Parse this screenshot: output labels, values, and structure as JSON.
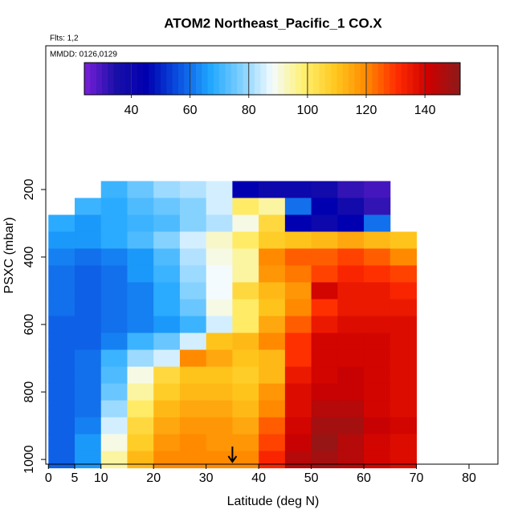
{
  "chart_data": {
    "type": "heatmap",
    "title": "ATOM2 Northeast_Pacific_1 CO.X",
    "subtitle": "Flts: 1,2",
    "annotation": "MMDD: 0126,0129",
    "xlabel": "Latitude (deg N)",
    "ylabel": "PSXC (mbar)",
    "xlim": [
      -0.5,
      85.5
    ],
    "xticks": [
      0,
      5,
      10,
      20,
      30,
      40,
      50,
      60,
      70,
      80
    ],
    "ylim": [
      1014,
      -226
    ],
    "yticks": [
      200,
      400,
      600,
      800,
      1000
    ],
    "xbins": [
      0,
      5,
      10,
      15,
      20,
      25,
      30,
      35,
      40,
      45,
      50,
      55,
      60,
      65,
      70
    ],
    "ybins": [
      175,
      225,
      275,
      325,
      375,
      425,
      475,
      525,
      575,
      625,
      675,
      725,
      775,
      825,
      875,
      925,
      975,
      1025
    ],
    "values": [
      [
        null,
        null,
        70,
        75,
        80,
        82,
        85,
        45,
        40,
        40,
        38,
        32,
        30,
        null
      ],
      [
        null,
        70,
        68,
        72,
        75,
        78,
        85,
        100,
        95,
        60,
        45,
        38,
        32,
        null
      ],
      [
        68,
        65,
        68,
        70,
        72,
        78,
        82,
        90,
        105,
        45,
        40,
        45,
        60,
        null
      ],
      [
        65,
        65,
        68,
        72,
        78,
        85,
        92,
        100,
        108,
        110,
        112,
        115,
        112,
        110
      ],
      [
        62,
        60,
        62,
        65,
        72,
        82,
        90,
        95,
        120,
        125,
        125,
        128,
        125,
        120
      ],
      [
        60,
        58,
        60,
        65,
        70,
        80,
        88,
        95,
        118,
        122,
        128,
        132,
        130,
        128
      ],
      [
        60,
        58,
        60,
        62,
        68,
        78,
        88,
        105,
        112,
        118,
        140,
        135,
        135,
        132
      ],
      [
        60,
        58,
        60,
        62,
        68,
        75,
        90,
        100,
        110,
        120,
        130,
        135,
        135,
        135
      ],
      [
        58,
        58,
        60,
        62,
        65,
        70,
        85,
        100,
        115,
        125,
        135,
        138,
        138,
        138
      ],
      [
        58,
        58,
        62,
        70,
        75,
        85,
        110,
        112,
        120,
        130,
        140,
        140,
        140,
        138
      ],
      [
        58,
        60,
        70,
        80,
        85,
        120,
        115,
        110,
        112,
        130,
        140,
        140,
        140,
        138
      ],
      [
        58,
        60,
        72,
        90,
        105,
        110,
        110,
        108,
        112,
        135,
        140,
        142,
        140,
        138
      ],
      [
        58,
        60,
        75,
        95,
        108,
        112,
        112,
        110,
        118,
        138,
        142,
        142,
        140,
        138
      ],
      [
        58,
        60,
        80,
        100,
        112,
        115,
        115,
        112,
        120,
        138,
        145,
        145,
        140,
        138
      ],
      [
        58,
        62,
        85,
        105,
        115,
        118,
        118,
        115,
        125,
        140,
        148,
        148,
        142,
        140
      ],
      [
        58,
        65,
        90,
        108,
        118,
        120,
        118,
        118,
        128,
        142,
        150,
        145,
        140,
        138
      ],
      [
        58,
        65,
        95,
        112,
        120,
        120,
        120,
        120,
        132,
        145,
        148,
        145,
        140,
        138
      ]
    ],
    "zlim": [
      24,
      152
    ],
    "zticks": [
      40,
      60,
      80,
      100,
      120,
      140
    ],
    "colors": [
      "#7a1fd8",
      "#1a0fa8",
      "#0000b0",
      "#0a50e0",
      "#1ea6ff",
      "#7fcfff",
      "#f4fbff",
      "#fff070",
      "#ffc81e",
      "#ff8a00",
      "#ff2a00",
      "#cc0000",
      "#8c1a1a"
    ],
    "arrow_x": 35
  }
}
